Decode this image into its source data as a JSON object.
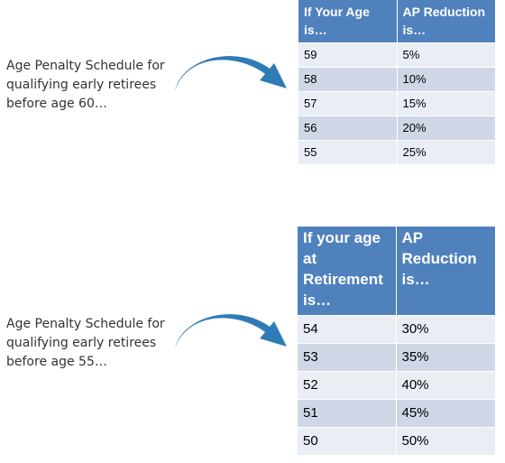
{
  "colors": {
    "header_bg": "#4f81bd",
    "row_odd": "#e9edf4",
    "row_even": "#cfd7e7",
    "arrow": "#2e7bb6"
  },
  "section1": {
    "caption": [
      "Age Penalty Schedule for",
      "qualifying early retirees",
      "before age 60…"
    ],
    "arrow_icon": "curved-arrow-right",
    "headers": [
      [
        "If Your Age",
        "is…"
      ],
      [
        "AP Reduction",
        "is…"
      ]
    ],
    "rows": [
      [
        "59",
        "5%"
      ],
      [
        "58",
        "10%"
      ],
      [
        "57",
        "15%"
      ],
      [
        "56",
        "20%"
      ],
      [
        "55",
        "25%"
      ]
    ]
  },
  "section2": {
    "caption": [
      "Age Penalty Schedule for",
      "qualifying early retirees",
      "before age 55…"
    ],
    "arrow_icon": "curved-arrow-right",
    "headers": [
      [
        "If your age",
        "at",
        "Retirement",
        "is…"
      ],
      [
        "AP",
        "Reduction",
        "is…"
      ]
    ],
    "rows": [
      [
        "54",
        "30%"
      ],
      [
        "53",
        "35%"
      ],
      [
        "52",
        "40%"
      ],
      [
        "51",
        "45%"
      ],
      [
        "50",
        "50%"
      ]
    ]
  }
}
